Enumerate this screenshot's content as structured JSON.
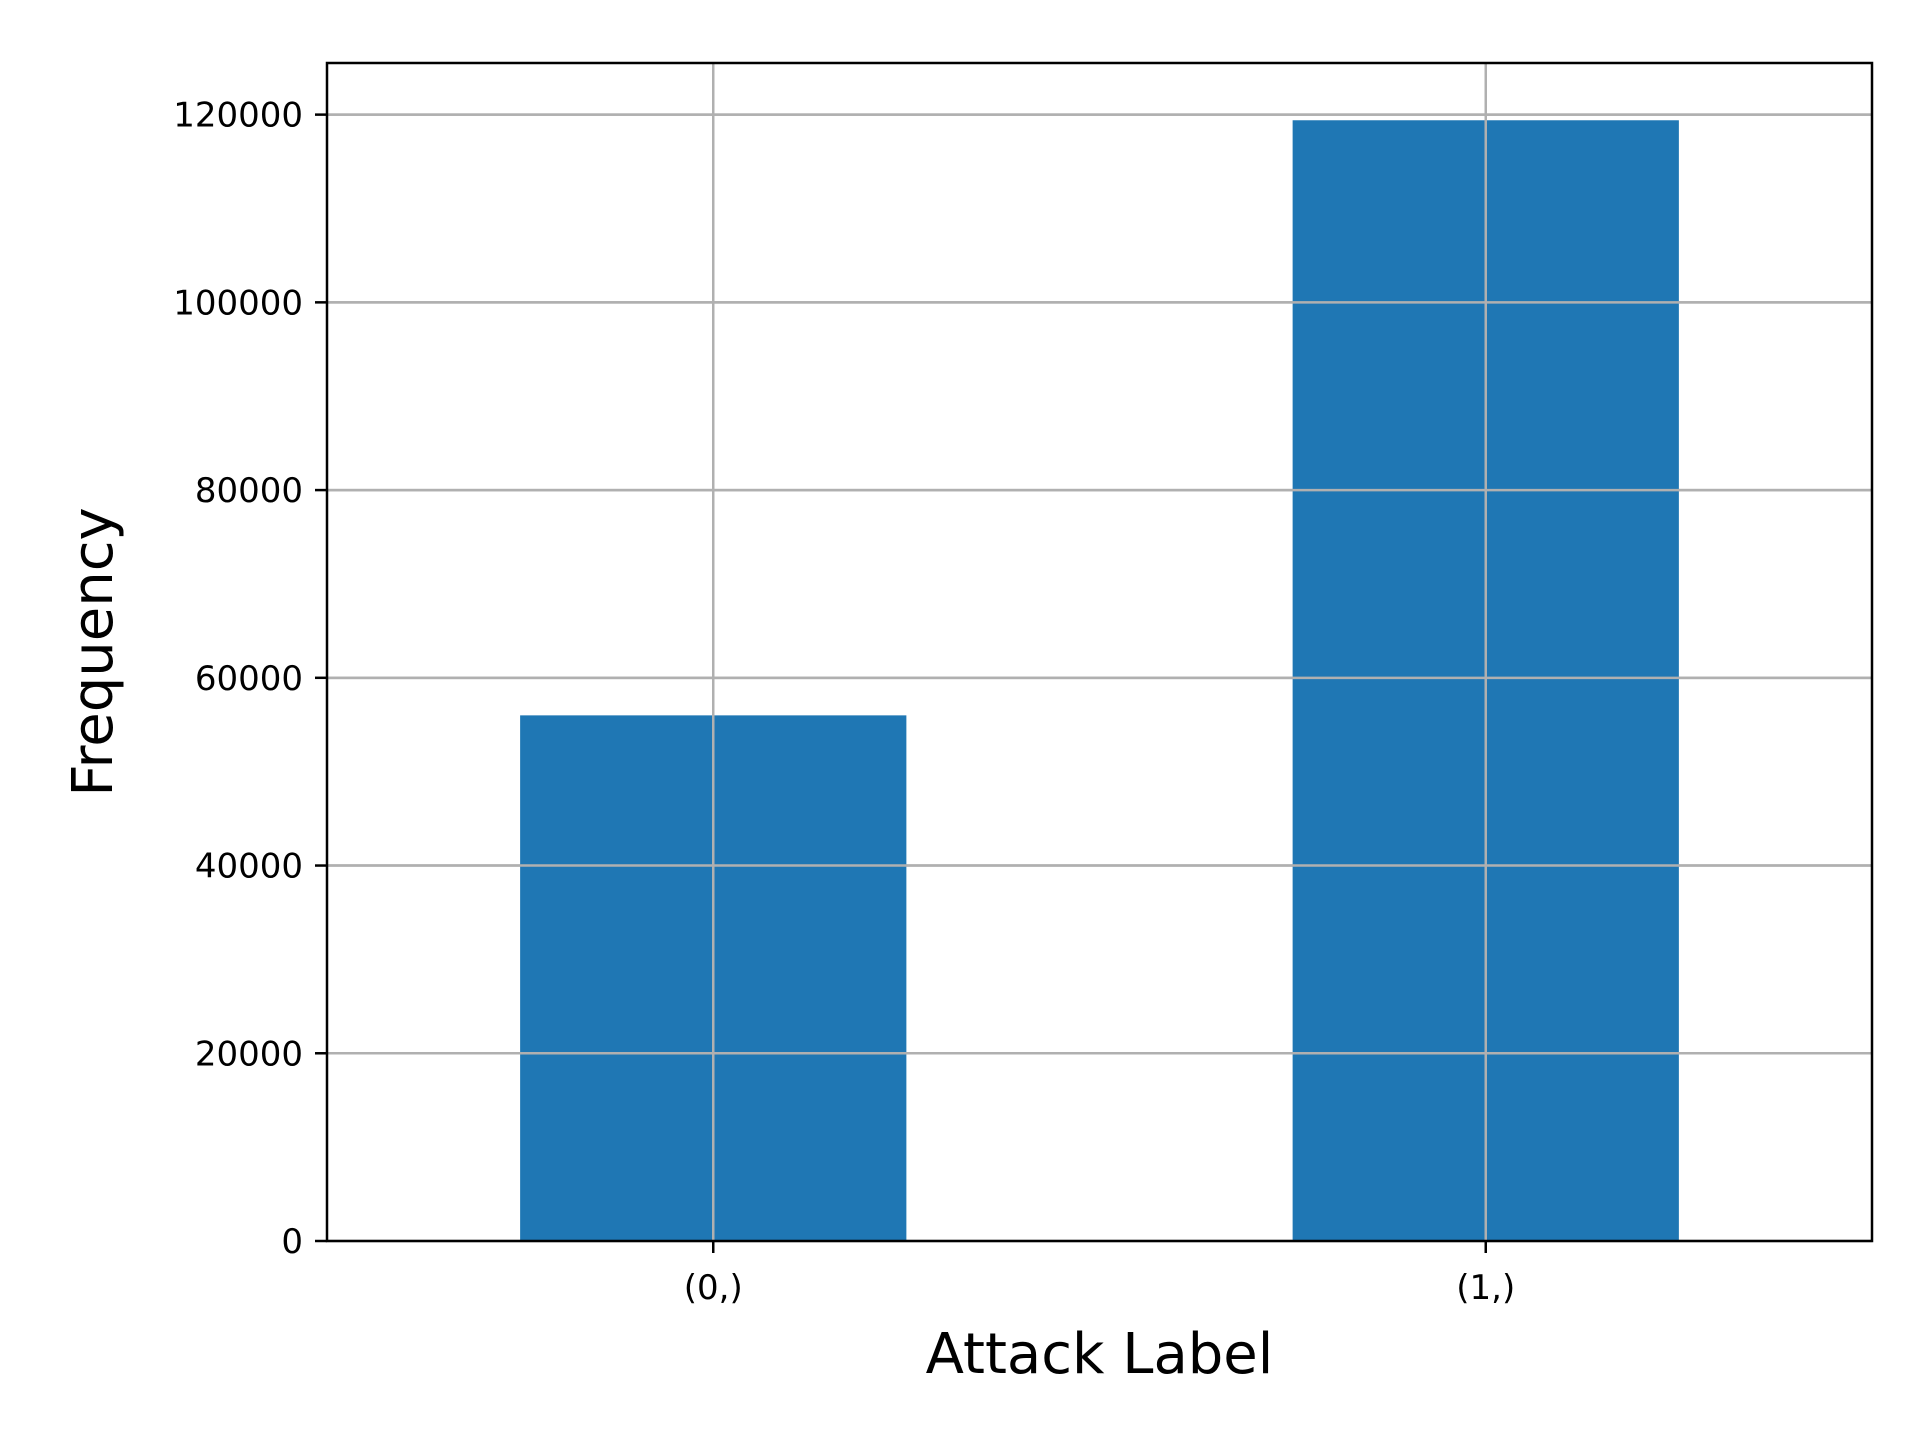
{
  "chart_data": {
    "type": "bar",
    "title": "",
    "xlabel": "Attack Label",
    "ylabel": "Frequency",
    "categories": [
      "(0,)",
      "(1,)"
    ],
    "values": [
      56000,
      119400
    ],
    "ylim": [
      0,
      125500
    ],
    "yticks": [
      0,
      20000,
      40000,
      60000,
      80000,
      100000,
      120000
    ],
    "ytick_labels": [
      "0",
      "20000",
      "40000",
      "60000",
      "80000",
      "100000",
      "120000"
    ],
    "grid": true,
    "legend": "none",
    "colors": {
      "bar": "#1f77b4",
      "grid": "#b0b0b0",
      "axis": "#000000"
    }
  }
}
